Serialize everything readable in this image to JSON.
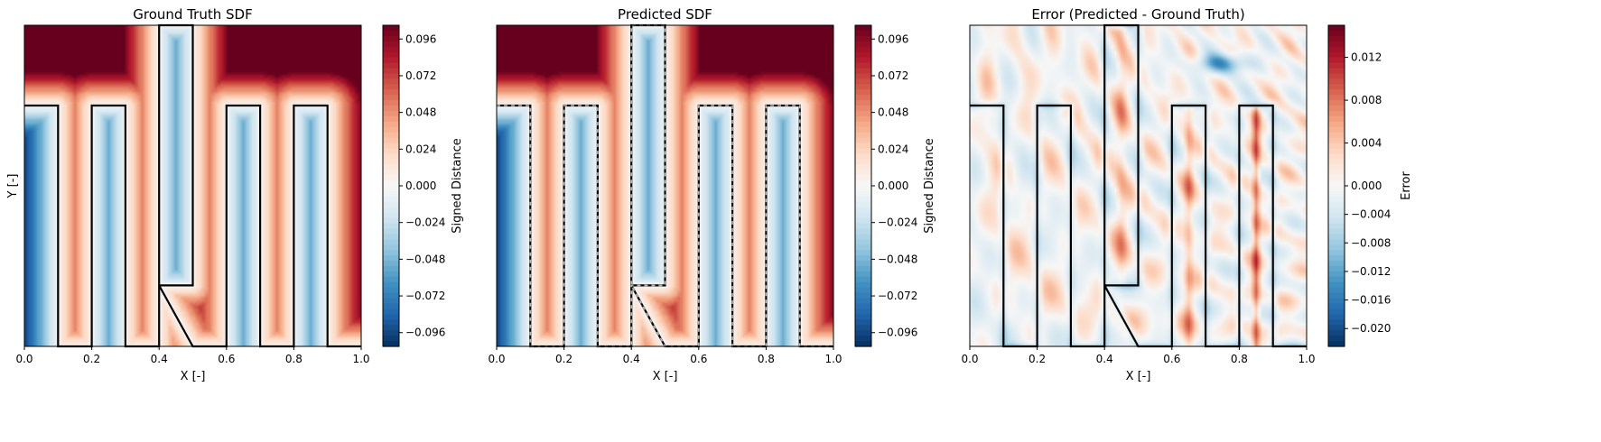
{
  "figure": {},
  "chart_data": [
    {
      "type": "heatmap",
      "title": "Ground Truth SDF",
      "xlabel": "X [-]",
      "ylabel": "Y [-]",
      "xlim": [
        0,
        1
      ],
      "ylim": [
        0,
        1
      ],
      "xticks": [
        "0.0",
        "0.2",
        "0.4",
        "0.6",
        "0.8",
        "1.0"
      ],
      "field": "sdf",
      "colormap": "RdBu_r",
      "boundary_style": "solid",
      "colorbar": {
        "label": "Signed Distance",
        "range": [
          -0.105,
          0.105
        ],
        "ticks": [
          "0.096",
          "0.072",
          "0.048",
          "0.024",
          "0.000",
          "−0.024",
          "−0.048",
          "−0.072",
          "−0.096"
        ]
      }
    },
    {
      "type": "heatmap",
      "title": "Predicted SDF",
      "xlabel": "X [-]",
      "ylabel": "",
      "xlim": [
        0,
        1
      ],
      "ylim": [
        0,
        1
      ],
      "xticks": [
        "0.0",
        "0.2",
        "0.4",
        "0.6",
        "0.8",
        "1.0"
      ],
      "field": "sdf",
      "colormap": "RdBu_r",
      "boundary_style": "solid+dashed",
      "colorbar": {
        "label": "Signed Distance",
        "range": [
          -0.105,
          0.105
        ],
        "ticks": [
          "0.096",
          "0.072",
          "0.048",
          "0.024",
          "0.000",
          "−0.024",
          "−0.048",
          "−0.072",
          "−0.096"
        ]
      }
    },
    {
      "type": "heatmap",
      "title": "Error (Predicted - Ground Truth)",
      "xlabel": "X [-]",
      "ylabel": "",
      "xlim": [
        0,
        1
      ],
      "ylim": [
        0,
        1
      ],
      "xticks": [
        "0.0",
        "0.2",
        "0.4",
        "0.6",
        "0.8",
        "1.0"
      ],
      "field": "error",
      "colormap": "RdBu_r",
      "boundary_style": "solid",
      "colorbar": {
        "label": "Error",
        "range": [
          -0.0225,
          0.015
        ],
        "ticks": [
          "0.012",
          "0.008",
          "0.004",
          "0.000",
          "−0.004",
          "−0.008",
          "−0.012",
          "−0.016",
          "−0.020"
        ]
      }
    }
  ],
  "geometry": {
    "boundary_polyline": [
      [
        0,
        0.75
      ],
      [
        0.1,
        0.75
      ],
      [
        0.1,
        0
      ],
      [
        0.2,
        0
      ],
      [
        0.2,
        0.75
      ],
      [
        0.3,
        0.75
      ],
      [
        0.3,
        0
      ],
      [
        0.4,
        0
      ],
      [
        0.4,
        0.19
      ],
      [
        0.5,
        0.19
      ],
      [
        0.5,
        1
      ],
      [
        0.4,
        1
      ],
      [
        0.4,
        0.19
      ],
      [
        0.5,
        0
      ],
      [
        0.6,
        0
      ],
      [
        0.6,
        0.75
      ],
      [
        0.7,
        0.75
      ],
      [
        0.7,
        0
      ],
      [
        0.8,
        0
      ],
      [
        0.8,
        0.75
      ],
      [
        0.9,
        0.75
      ],
      [
        0.9,
        0
      ],
      [
        1,
        0
      ]
    ]
  },
  "colors": {
    "colormap_stops": [
      "#053061",
      "#2166ac",
      "#4393c3",
      "#92c5de",
      "#d1e5f0",
      "#f7f7f7",
      "#fddbc7",
      "#f4a582",
      "#d6604d",
      "#b2182b",
      "#67001f"
    ],
    "boundary": "#000000",
    "boundary_dash": "#bbbbbb"
  }
}
